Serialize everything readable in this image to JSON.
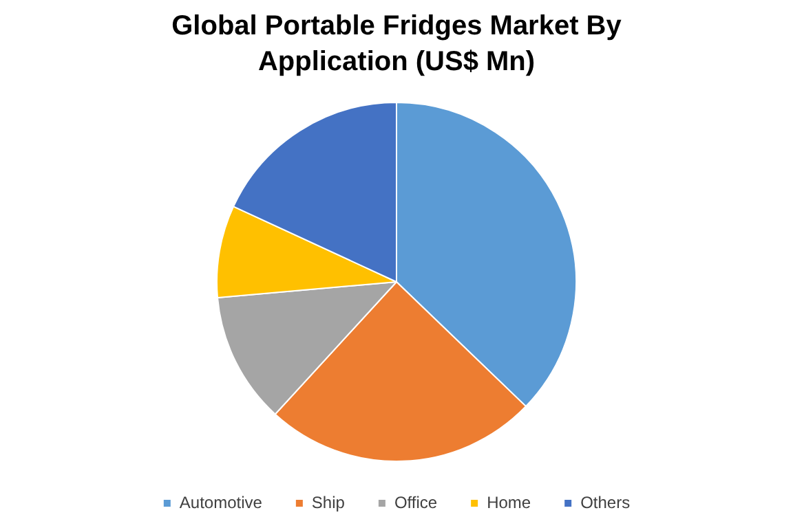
{
  "chart_data": {
    "type": "pie",
    "title": "Global Portable Fridges Market By Application (US$ Mn)",
    "categories": [
      "Automotive",
      "Ship",
      "Office",
      "Home",
      "Others"
    ],
    "values": [
      37.2,
      24.6,
      11.8,
      8.3,
      18.1
    ],
    "colors": [
      "#5b9bd5",
      "#ed7d31",
      "#a5a5a5",
      "#ffc000",
      "#4472c4"
    ],
    "legend": "bottom"
  }
}
